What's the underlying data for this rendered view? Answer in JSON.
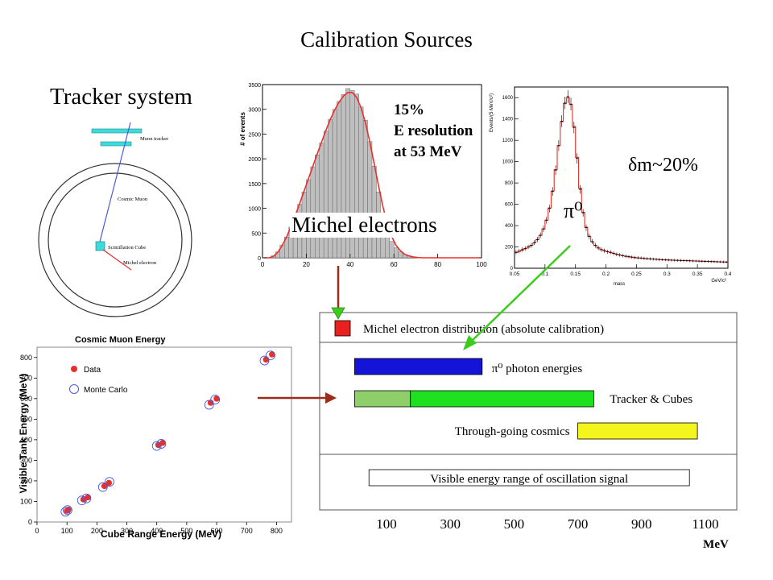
{
  "title": "Calibration Sources",
  "tracker": {
    "heading": "Tracker system",
    "muon_tracker_label": "Muon tracker",
    "cosmic_muon_label": "Cosmic Muon",
    "scint_cube_label": "Scintillation Cube",
    "michel_electron_label": "Michel electron"
  },
  "michel_hist": {
    "ylabel": "# of events",
    "label": "Michel electrons",
    "resolution_lines": [
      "15%",
      "E resolution",
      "at 53 MeV"
    ]
  },
  "pi0_hist": {
    "ylabel": "Events/(5 MeV/c²)",
    "xlabel": "mass",
    "xunit": "GeV/c²",
    "resolution_text": "δm~20%",
    "particle_label": "π⁰"
  },
  "ranges": {
    "rows": [
      {
        "label": "Michel electron distribution  (absolute calibration)"
      },
      {
        "label": "π⁰ photon energies"
      },
      {
        "label": "Tracker & Cubes"
      },
      {
        "label": "Through-going cosmics"
      },
      {
        "label": "Visible energy range of oscillation signal"
      }
    ],
    "unit": "MeV"
  },
  "colors": {
    "hist_fill": "#bfbfbf",
    "fit_curve": "#e8302a",
    "data_marker": "#e8302a",
    "mc_marker": "#4a5cd8",
    "michel_box": "#e8201e",
    "pi0_bar": "#1414d8",
    "tracker_bar_light": "#8fcf6a",
    "tracker_bar": "#1ee01e",
    "cosmics_bar": "#f5f51e",
    "arrow_dark": "#9a2d1c",
    "arrow_green": "#3ccc1e",
    "cube_cyan": "#3cdcdc"
  },
  "chart_data": [
    {
      "type": "bar",
      "title": "",
      "xlabel": "",
      "ylabel": "# of events",
      "xlim": [
        0,
        100
      ],
      "ylim": [
        0,
        3500
      ],
      "x_ticks": [
        0,
        20,
        40,
        60,
        80,
        100
      ],
      "y_ticks": [
        0,
        500,
        1000,
        1500,
        2000,
        2500,
        3000,
        3500
      ],
      "bin_width": 2,
      "x": [
        1,
        3,
        5,
        7,
        9,
        11,
        13,
        15,
        17,
        19,
        21,
        23,
        25,
        27,
        29,
        31,
        33,
        35,
        37,
        39,
        41,
        43,
        45,
        47,
        49,
        51,
        53,
        55,
        57,
        59,
        61,
        63,
        65,
        67,
        69,
        71,
        73,
        75,
        77,
        79,
        81,
        83,
        85,
        87,
        89,
        91,
        93,
        95,
        97,
        99
      ],
      "values": [
        0,
        0,
        40,
        120,
        260,
        420,
        620,
        840,
        1080,
        1330,
        1580,
        1840,
        2080,
        2320,
        2560,
        2800,
        3000,
        3160,
        3300,
        3420,
        3380,
        3310,
        3050,
        2780,
        2350,
        1850,
        1330,
        880,
        540,
        330,
        200,
        120,
        70,
        40,
        20,
        10,
        5,
        0,
        0,
        0,
        0,
        0,
        0,
        0,
        0,
        0,
        0,
        0,
        0,
        0
      ],
      "fit": [
        0,
        0,
        30,
        110,
        250,
        420,
        630,
        860,
        1100,
        1350,
        1600,
        1850,
        2100,
        2340,
        2580,
        2800,
        2990,
        3150,
        3270,
        3340,
        3340,
        3240,
        3030,
        2730,
        2340,
        1900,
        1450,
        1030,
        690,
        430,
        250,
        140,
        70,
        35,
        15,
        6,
        0,
        0,
        0,
        0,
        0,
        0,
        0,
        0,
        0,
        0,
        0,
        0,
        0,
        0
      ]
    },
    {
      "type": "bar",
      "title": "",
      "xlabel": "mass",
      "ylabel": "Events/(5 MeV/c²)",
      "xlim": [
        0.05,
        0.4
      ],
      "ylim": [
        0,
        1700
      ],
      "x_ticks": [
        0.05,
        0.1,
        0.15,
        0.2,
        0.25,
        0.3,
        0.35,
        0.4
      ],
      "y_ticks": [
        0,
        200,
        400,
        600,
        800,
        1000,
        1200,
        1400,
        1600
      ],
      "x": [
        0.0525,
        0.0575,
        0.0625,
        0.0675,
        0.0725,
        0.0775,
        0.0825,
        0.0875,
        0.0925,
        0.0975,
        0.1025,
        0.1075,
        0.1125,
        0.1175,
        0.1225,
        0.1275,
        0.1325,
        0.1375,
        0.1425,
        0.1475,
        0.1525,
        0.1575,
        0.1625,
        0.1675,
        0.1725,
        0.1775,
        0.1825,
        0.1875,
        0.1925,
        0.1975,
        0.2025,
        0.2075,
        0.2125,
        0.2175,
        0.2225,
        0.2275,
        0.2325,
        0.2375,
        0.2425,
        0.2475,
        0.2525,
        0.2575,
        0.2625,
        0.2675,
        0.2725,
        0.2775,
        0.2825,
        0.2875,
        0.2925,
        0.2975,
        0.3025,
        0.3075,
        0.3125,
        0.3175,
        0.3225,
        0.3275,
        0.3325,
        0.3375,
        0.3425,
        0.3475,
        0.3525,
        0.3575,
        0.3625,
        0.3675,
        0.3725,
        0.3775,
        0.3825,
        0.3875,
        0.3925,
        0.3975
      ],
      "values": [
        150,
        160,
        175,
        185,
        200,
        215,
        240,
        270,
        310,
        370,
        450,
        560,
        720,
        920,
        1150,
        1380,
        1550,
        1610,
        1540,
        1320,
        1030,
        740,
        520,
        380,
        300,
        250,
        215,
        190,
        175,
        165,
        155,
        150,
        140,
        130,
        125,
        118,
        112,
        108,
        104,
        100,
        98,
        96,
        93,
        90,
        88,
        86,
        84,
        82,
        80,
        79,
        78,
        76,
        75,
        74,
        73,
        72,
        71,
        70,
        69,
        68,
        67,
        66,
        65,
        64,
        63,
        62,
        61,
        60,
        59,
        58
      ],
      "fit": [
        148,
        158,
        170,
        184,
        198,
        214,
        238,
        268,
        308,
        368,
        452,
        565,
        725,
        925,
        1150,
        1375,
        1545,
        1600,
        1535,
        1330,
        1040,
        750,
        525,
        385,
        300,
        248,
        214,
        190,
        174,
        164,
        155,
        148,
        140,
        132,
        124,
        118,
        113,
        108,
        104,
        100,
        97,
        95,
        92,
        90,
        88,
        86,
        84,
        82,
        80,
        78,
        77,
        76,
        75,
        74,
        73,
        72,
        71,
        70,
        69,
        68,
        67,
        66,
        65,
        64,
        63,
        62,
        61,
        60,
        59,
        58
      ]
    },
    {
      "type": "scatter",
      "title": "Cosmic Muon Energy",
      "xlabel": "Cube Range Energy (MeV)",
      "ylabel": "Visible Tank Energy (MeV)",
      "xlim": [
        0,
        850
      ],
      "ylim": [
        0,
        850
      ],
      "x_ticks": [
        0,
        100,
        200,
        300,
        400,
        500,
        600,
        700,
        800
      ],
      "y_ticks": [
        0,
        100,
        200,
        300,
        400,
        500,
        600,
        700,
        800
      ],
      "legend_position": "top-left",
      "series": [
        {
          "name": "Data",
          "marker": "filled-circle",
          "x": [
            100,
            105,
            155,
            170,
            225,
            240,
            405,
            420,
            580,
            600,
            765,
            785
          ],
          "y": [
            55,
            60,
            110,
            120,
            175,
            190,
            375,
            385,
            580,
            600,
            790,
            815
          ]
        },
        {
          "name": "Monte Carlo",
          "marker": "open-circle",
          "x": [
            95,
            102,
            150,
            165,
            220,
            242,
            400,
            415,
            575,
            595,
            760,
            780
          ],
          "y": [
            50,
            58,
            105,
            115,
            170,
            195,
            370,
            380,
            570,
            595,
            785,
            810
          ]
        }
      ]
    },
    {
      "type": "bar",
      "title": "",
      "xlabel": "MeV",
      "ylabel": "",
      "orientation": "horizontal-ranges",
      "x_ticks": [
        100,
        300,
        500,
        700,
        900,
        1100
      ],
      "ranges": [
        {
          "label": "π⁰ photon energies",
          "start": 0,
          "end": 400
        },
        {
          "label": "Tracker & Cubes",
          "start": 0,
          "end": 750,
          "light_until": 175
        },
        {
          "label": "Through-going cosmics",
          "start": 700,
          "end": 1075
        },
        {
          "label": "Visible energy range of oscillation signal",
          "start": 45,
          "end": 1050
        }
      ]
    }
  ]
}
